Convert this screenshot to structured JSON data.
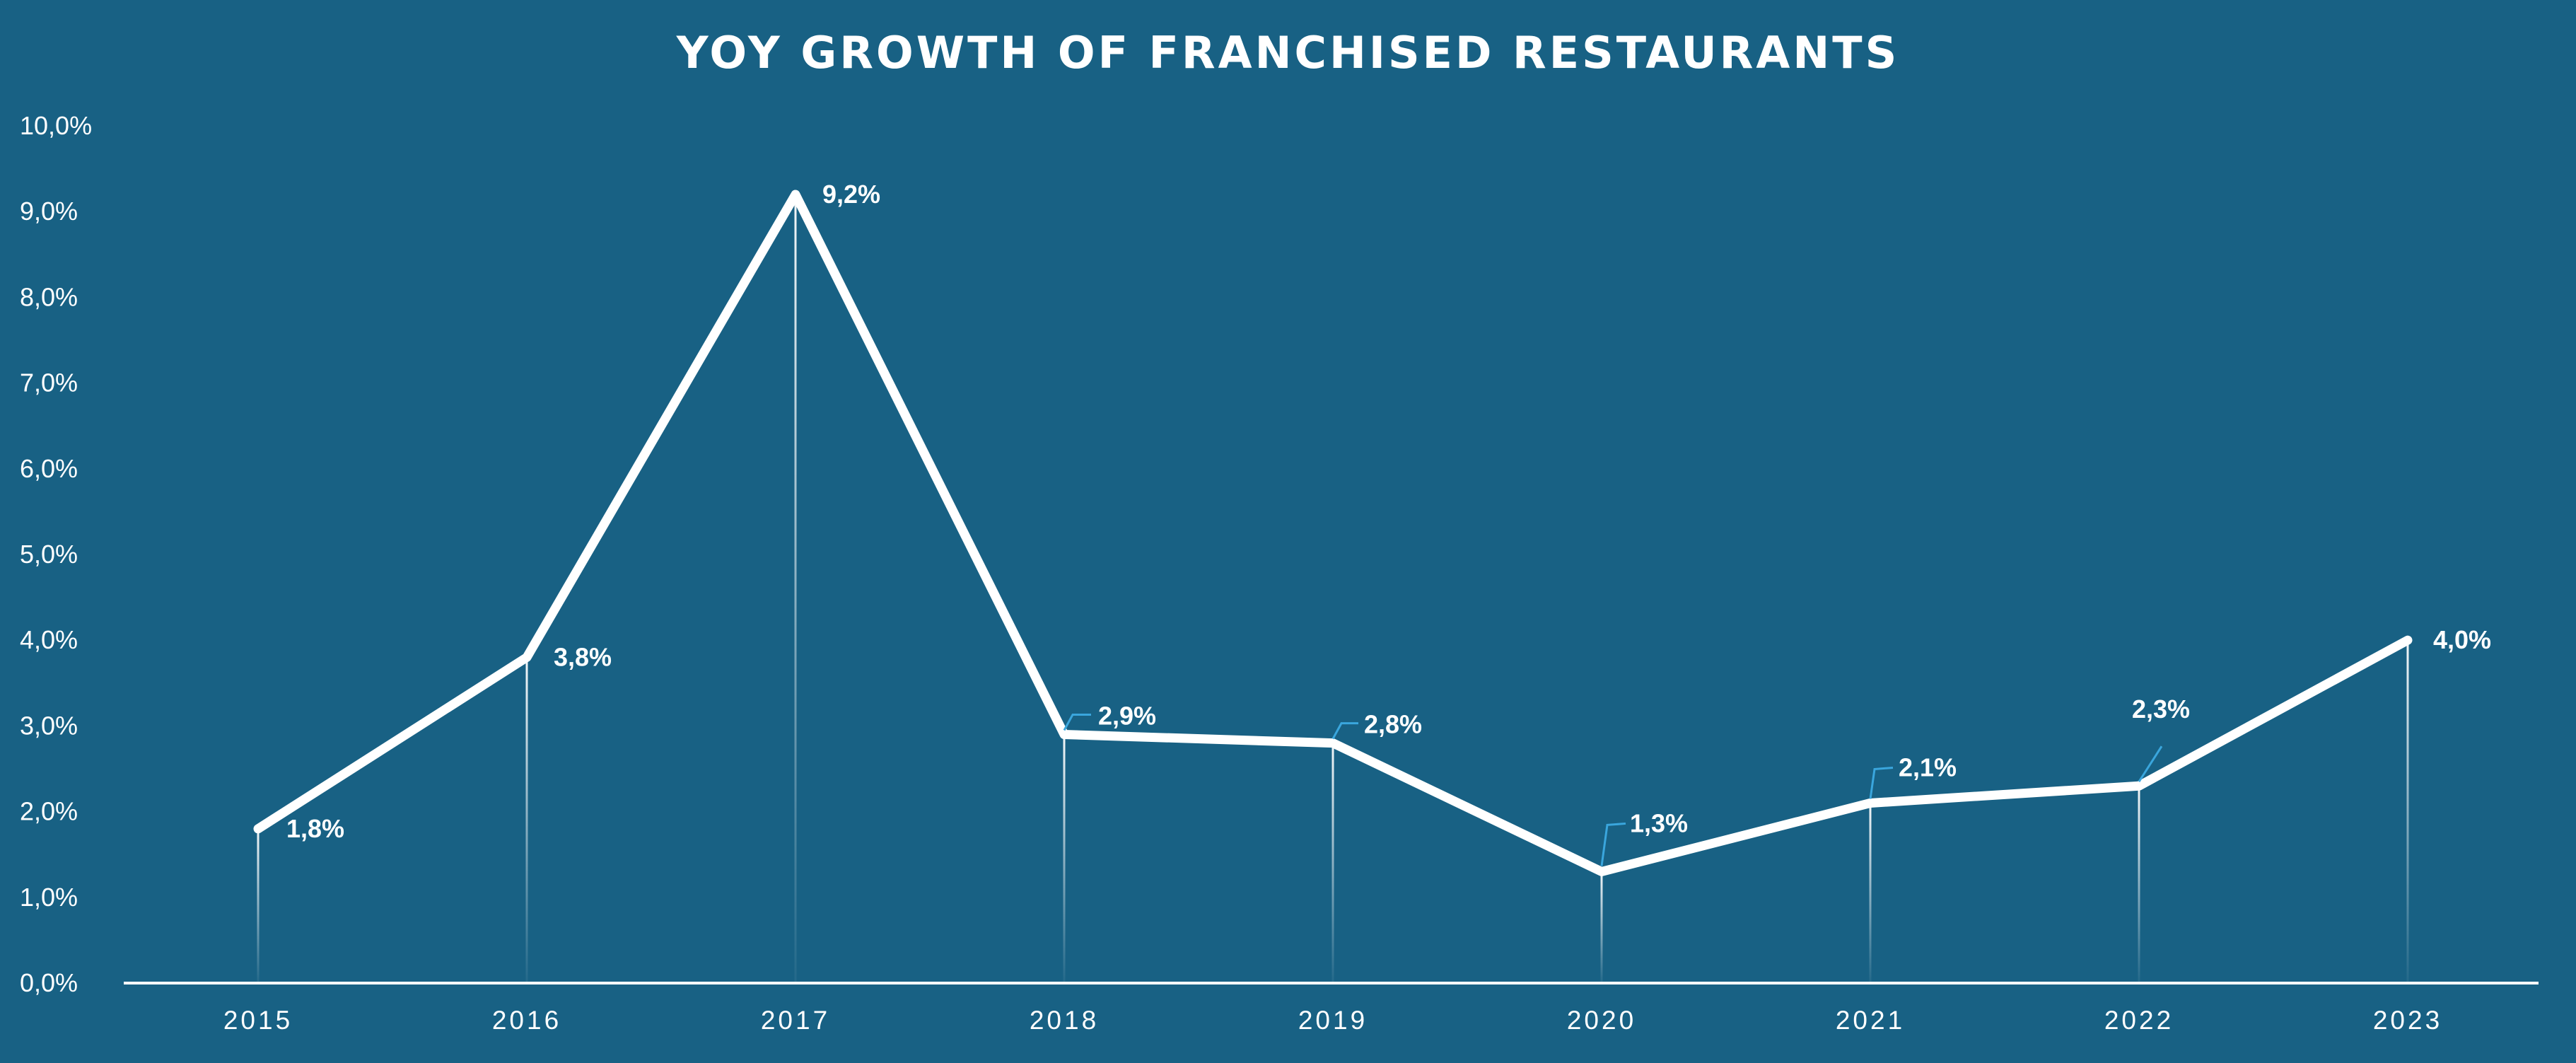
{
  "chart_data": {
    "type": "line",
    "title": "YOY GROWTH OF FRANCHISED RESTAURANTS",
    "x": [
      "2015",
      "2016",
      "2017",
      "2018",
      "2019",
      "2020",
      "2021",
      "2022",
      "2023"
    ],
    "series": [
      {
        "values": [
          1.8,
          3.8,
          9.2,
          2.9,
          2.8,
          1.3,
          2.1,
          2.3,
          4.0
        ],
        "data_labels": [
          "1,8%",
          "3,8%",
          "9,2%",
          "2,9%",
          "2,8%",
          "1,3%",
          "2,1%",
          "2,3%",
          "4,0%"
        ]
      }
    ],
    "ylim": [
      0,
      10
    ],
    "yticks": [
      "0,0%",
      "1,0%",
      "2,0%",
      "3,0%",
      "4,0%",
      "5,0%",
      "6,0%",
      "7,0%",
      "8,0%",
      "9,0%",
      "10,0%"
    ],
    "grid": false,
    "legend": "none",
    "xlabel": "",
    "ylabel": "",
    "colors": {
      "background": "#186184",
      "line": "#ffffff",
      "leader": "#3aa6dd"
    }
  }
}
